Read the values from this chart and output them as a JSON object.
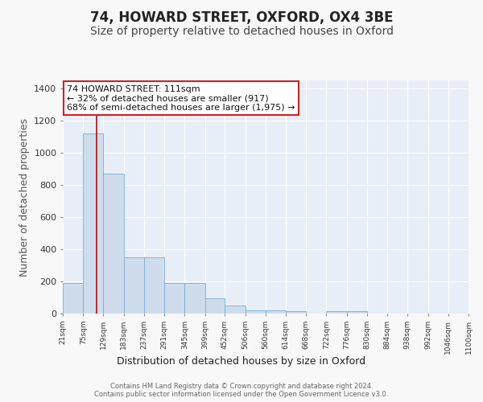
{
  "title": "74, HOWARD STREET, OXFORD, OX4 3BE",
  "subtitle": "Size of property relative to detached houses in Oxford",
  "xlabel": "Distribution of detached houses by size in Oxford",
  "ylabel": "Number of detached properties",
  "bar_color": "#cfdcec",
  "bar_edge_color": "#7aadd4",
  "bar_heights": [
    190,
    1120,
    870,
    350,
    350,
    190,
    190,
    95,
    50,
    20,
    20,
    15,
    0,
    15,
    15,
    0,
    0,
    0,
    0,
    0
  ],
  "bin_edges": [
    21,
    75,
    129,
    183,
    237,
    291,
    345,
    399,
    452,
    506,
    560,
    614,
    668,
    722,
    776,
    830,
    884,
    938,
    992,
    1046,
    1100
  ],
  "bin_labels": [
    "21sqm",
    "75sqm",
    "129sqm",
    "183sqm",
    "237sqm",
    "291sqm",
    "345sqm",
    "399sqm",
    "452sqm",
    "506sqm",
    "560sqm",
    "614sqm",
    "668sqm",
    "722sqm",
    "776sqm",
    "830sqm",
    "884sqm",
    "938sqm",
    "992sqm",
    "1046sqm",
    "1100sqm"
  ],
  "property_size": 111,
  "red_line_color": "#aa2222",
  "annotation_line1": "74 HOWARD STREET: 111sqm",
  "annotation_line2": "← 32% of detached houses are smaller (917)",
  "annotation_line3": "68% of semi-detached houses are larger (1,975) →",
  "annotation_box_color": "#ffffff",
  "annotation_box_edge": "#cc2222",
  "ylim": [
    0,
    1450
  ],
  "yticks": [
    0,
    200,
    400,
    600,
    800,
    1000,
    1200,
    1400
  ],
  "background_color": "#e8eef8",
  "grid_color": "#ffffff",
  "footer_text": "Contains HM Land Registry data © Crown copyright and database right 2024.\nContains public sector information licensed under the Open Government Licence v3.0.",
  "title_fontsize": 12,
  "subtitle_fontsize": 10,
  "ylabel_fontsize": 9,
  "xlabel_fontsize": 9,
  "fig_bg": "#f8f8f8"
}
